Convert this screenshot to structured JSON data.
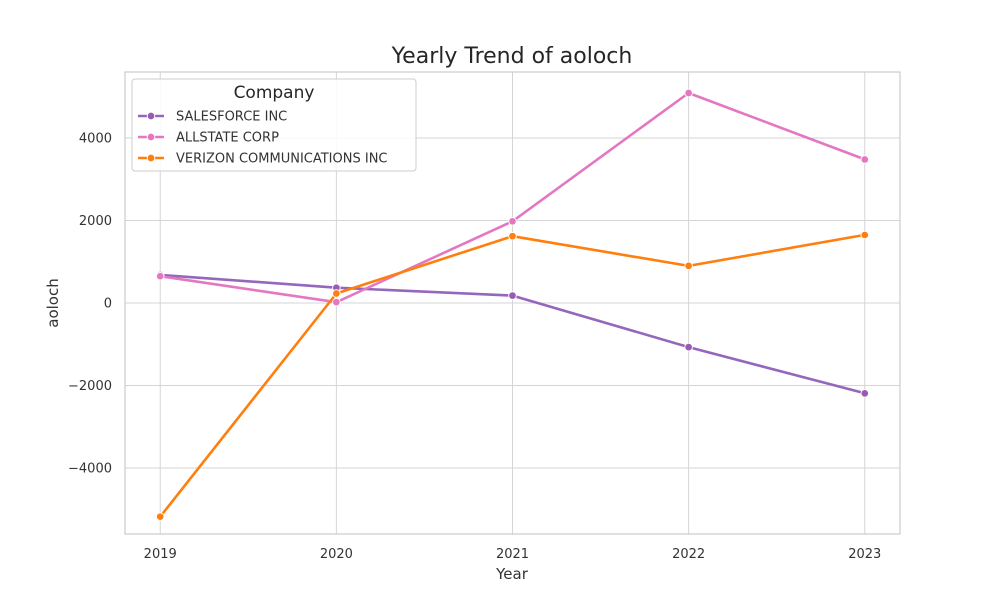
{
  "chart_data": {
    "type": "line",
    "title": "Yearly Trend of aoloch",
    "xlabel": "Year",
    "ylabel": "aoloch",
    "x": [
      2019,
      2020,
      2021,
      2022,
      2023
    ],
    "x_ticks": [
      "2019",
      "2020",
      "2021",
      "2022",
      "2023"
    ],
    "y_ticks": [
      -4000,
      -2000,
      0,
      2000,
      4000
    ],
    "y_tick_labels": [
      "−4000",
      "−2000",
      "0",
      "2000",
      "4000"
    ],
    "ylim": [
      -5600,
      5600
    ],
    "xlim": [
      2018.8,
      2023.2
    ],
    "grid": true,
    "legend": {
      "title": "Company",
      "placement": "top-left"
    },
    "series": [
      {
        "name": "SALESFORCE INC",
        "color": "#9467bd",
        "marker_color": "#9b59b6",
        "values": [
          680,
          370,
          180,
          -1070,
          -2190
        ]
      },
      {
        "name": "ALLSTATE CORP",
        "color": "#e377c2",
        "marker_color": "#e377c2",
        "values": [
          650,
          20,
          1980,
          5090,
          3480
        ]
      },
      {
        "name": "VERIZON COMMUNICATIONS INC",
        "color": "#ff7f0e",
        "marker_color": "#ff7f0e",
        "values": [
          -5180,
          230,
          1620,
          900,
          1650
        ]
      }
    ]
  }
}
